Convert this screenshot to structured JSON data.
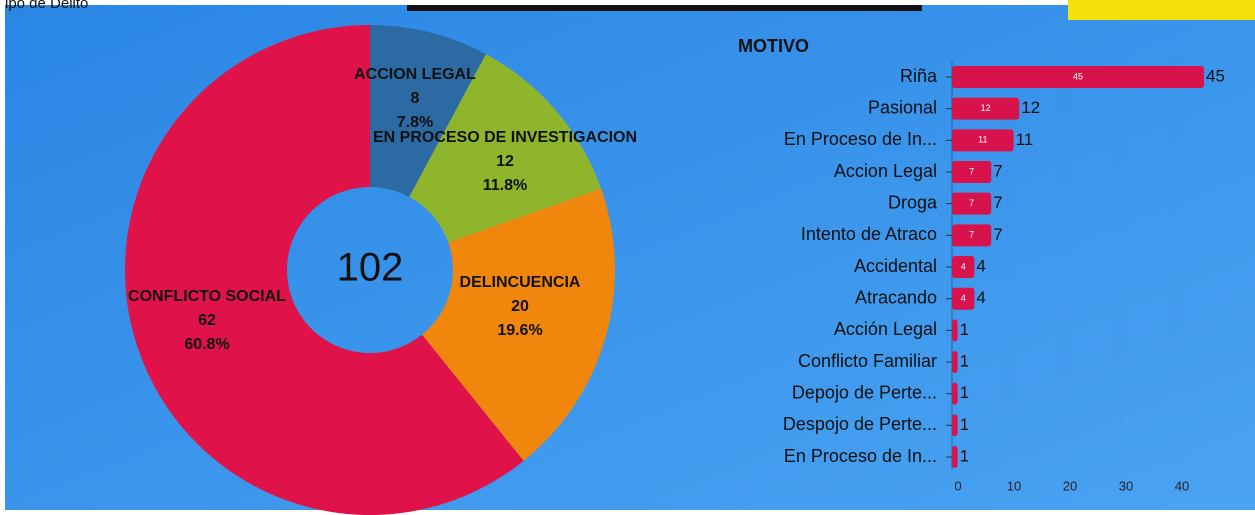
{
  "chart_data": [
    {
      "type": "pie",
      "title": "ipo de Delito",
      "categories": [
        "ACCION LEGAL",
        "EN PROCESO DE INVESTIGACION",
        "DELINCUENCIA",
        "CONFLICTO SOCIAL"
      ],
      "values": [
        8,
        12,
        20,
        62
      ],
      "percent_labels": [
        "7.8%",
        "11.8%",
        "19.6%",
        "60.8%"
      ],
      "colors": [
        "#2b6aa3",
        "#8fb52c",
        "#f0870c",
        "#e0124a"
      ],
      "total": 102
    },
    {
      "type": "hbar",
      "title": "MOTIVO",
      "categories": [
        "Riña",
        "Pasional",
        "En Proceso de In...",
        "Accion Legal",
        "Droga",
        "Intento de Atraco",
        "Accidental",
        "Atracando",
        "Acción Legal",
        "Conflicto Familiar",
        "Depojo de Perte...",
        "Despojo de Perte...",
        "En Proceso de In..."
      ],
      "values": [
        45,
        12,
        11,
        7,
        7,
        7,
        4,
        4,
        1,
        1,
        1,
        1,
        1
      ],
      "color": "#d8124a",
      "xlim": [
        0,
        45
      ],
      "xticks": [
        0,
        10,
        20,
        30,
        40
      ],
      "grid": true
    }
  ]
}
